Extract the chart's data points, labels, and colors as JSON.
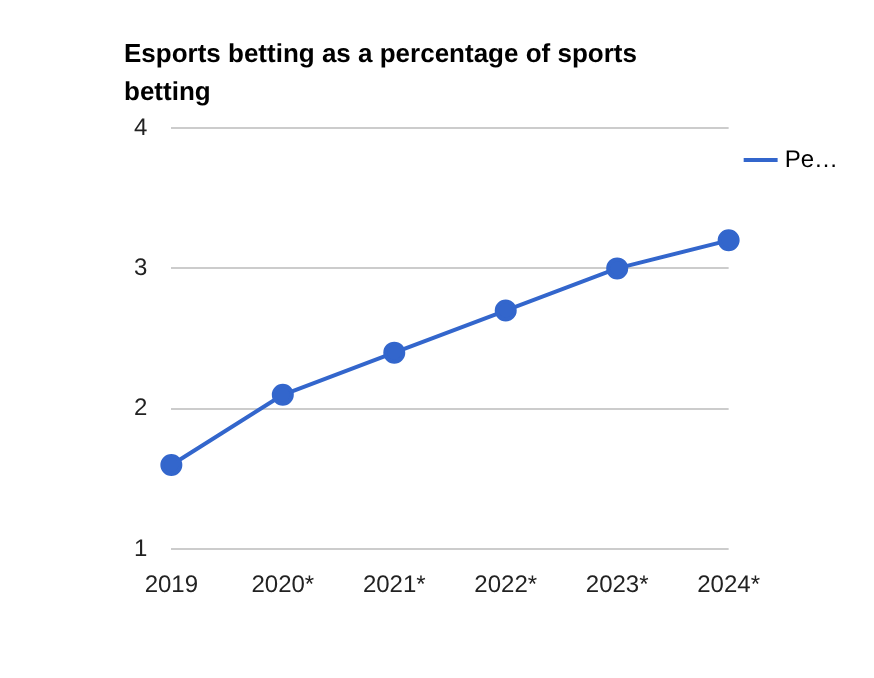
{
  "chart_data": {
    "type": "line",
    "title": "Esports betting as a percentage of sports betting",
    "categories": [
      "2019",
      "2020*",
      "2021*",
      "2022*",
      "2023*",
      "2024*"
    ],
    "series": [
      {
        "name": "Pe…",
        "color": "#3366cc",
        "values": [
          1.6,
          2.1,
          2.4,
          2.7,
          3.0,
          3.2
        ]
      }
    ],
    "ylim": [
      1,
      4
    ],
    "yticks": [
      1,
      2,
      3,
      4
    ],
    "grid": "y",
    "legend": "top right",
    "marker": "circle",
    "line_style": "solid"
  }
}
